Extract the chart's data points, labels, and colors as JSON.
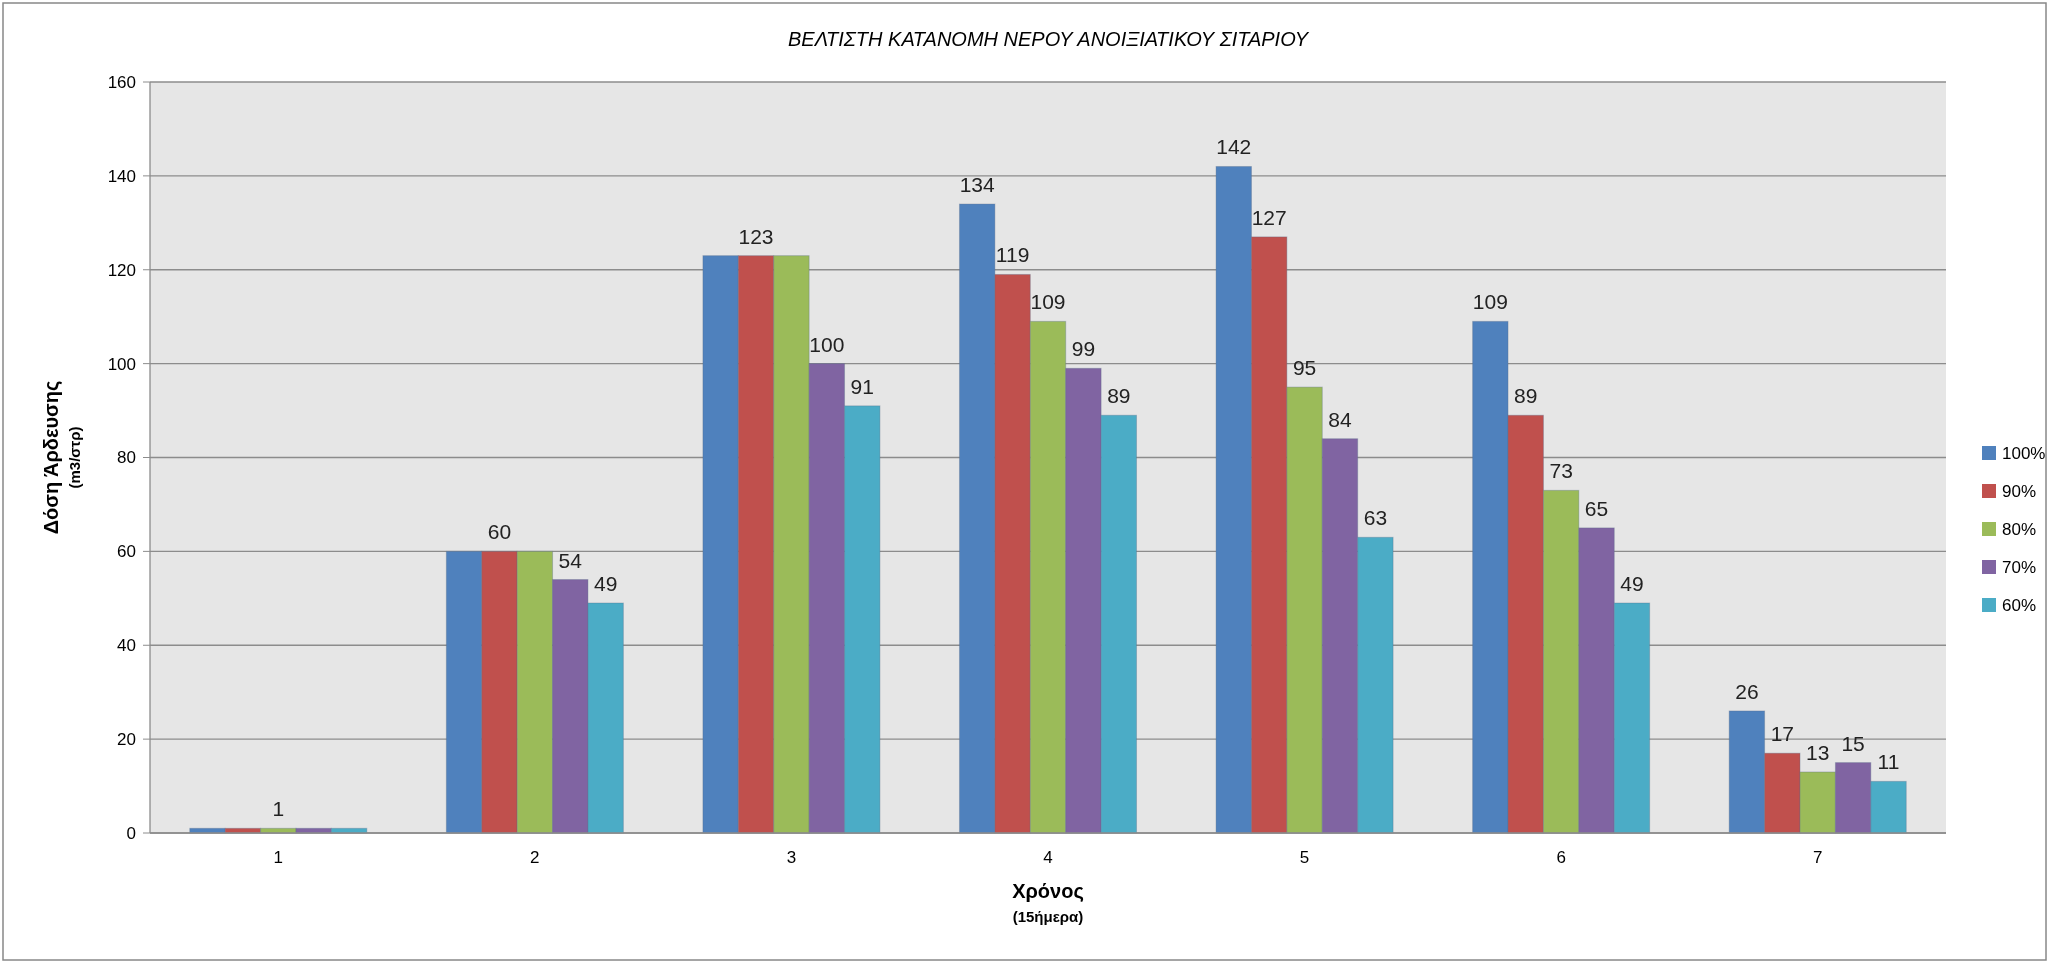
{
  "chart_data": {
    "type": "bar",
    "title": "ΒΕΛΤΙΣΤΗ ΚΑΤΑΝΟΜΗ ΝΕΡΟΥ ΑΝΟΙΞΙΑΤΙΚΟΥ ΣΙΤΑΡΙΟΥ",
    "xlabel": "Χρόνος\n(15ήμερα)",
    "ylabel": "Δόση Άρδευσης\n(m3/στρ)",
    "categories": [
      "1",
      "2",
      "3",
      "4",
      "5",
      "6",
      "7"
    ],
    "series": [
      {
        "name": "100%",
        "color": "#4f81bd",
        "values": [
          1,
          60,
          123,
          134,
          142,
          109,
          26
        ],
        "value_labels": [
          null,
          null,
          null,
          "134",
          "142",
          "109",
          "26"
        ]
      },
      {
        "name": "90%",
        "color": "#c0504d",
        "values": [
          1,
          60,
          123,
          119,
          127,
          89,
          17
        ],
        "value_labels": [
          null,
          "60",
          "123",
          "119",
          "127",
          "89",
          "17"
        ]
      },
      {
        "name": "80%",
        "color": "#9bbb59",
        "values": [
          1,
          60,
          123,
          109,
          95,
          73,
          13
        ],
        "value_labels": [
          "1",
          null,
          null,
          "109",
          "95",
          "73",
          "13"
        ]
      },
      {
        "name": "70%",
        "color": "#8064a2",
        "values": [
          1,
          54,
          100,
          99,
          84,
          65,
          15
        ],
        "value_labels": [
          null,
          "54",
          "100",
          "99",
          "84",
          "65",
          "15"
        ]
      },
      {
        "name": "60%",
        "color": "#4bacc6",
        "values": [
          1,
          49,
          91,
          89,
          63,
          49,
          11
        ],
        "value_labels": [
          null,
          "49",
          "91",
          "89",
          "63",
          "49",
          "11"
        ]
      }
    ],
    "ylim": [
      0,
      160
    ],
    "yticks": [
      0,
      20,
      40,
      60,
      80,
      100,
      120,
      140,
      160
    ],
    "grid": "y",
    "legend": "right"
  }
}
